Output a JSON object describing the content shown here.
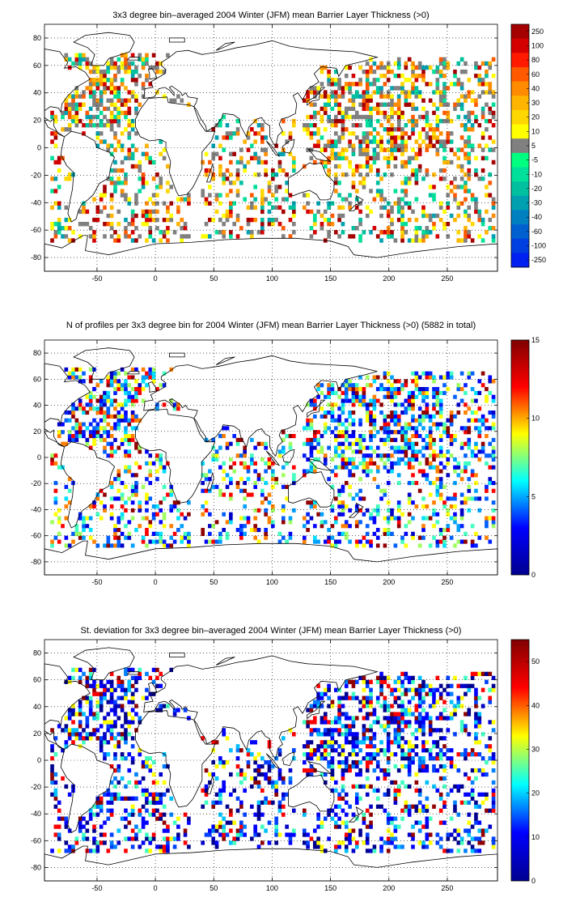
{
  "chart_data": [
    {
      "type": "heatmap",
      "title": "3x3 degree bin–averaged 2004 Winter (JFM) mean Barrier Layer Thickness (>0)",
      "xlim": [
        -95,
        293
      ],
      "ylim": [
        -90,
        90
      ],
      "xticks": [
        -50,
        0,
        50,
        100,
        150,
        200,
        250
      ],
      "yticks": [
        -80,
        -60,
        -40,
        -20,
        0,
        20,
        40,
        60,
        80
      ],
      "grid": true,
      "colorbar": {
        "kind": "discrete",
        "labels": [
          "250",
          "100",
          "80",
          "60",
          "40",
          "30",
          "20",
          "10",
          "5",
          "-5",
          "-10",
          "-20",
          "-30",
          "-40",
          "-60",
          "-100",
          "-250"
        ],
        "colors": [
          "#a50000",
          "#d40000",
          "#ff1a00",
          "#ff5a00",
          "#ff8c00",
          "#ffb400",
          "#ffd700",
          "#ffff00",
          "#808080",
          "#00ff80",
          "#00e09a",
          "#00c0a0",
          "#00a0b0",
          "#0080c0",
          "#0060d0",
          "#0040e0",
          "#0020f0"
        ]
      },
      "cell_palette": [
        "#808080",
        "#808080",
        "#808080",
        "#ffff00",
        "#ffd700",
        "#ffb400",
        "#ff8c00",
        "#ff5a00",
        "#d40000",
        "#a50000",
        "#00e09a",
        "#00c0a0",
        "#00a0b0"
      ],
      "regions": [
        {
          "lon": [
            -90,
            30
          ],
          "lat": [
            -70,
            70
          ],
          "density": 0.32
        },
        {
          "lon": [
            -75,
            -15
          ],
          "lat": [
            15,
            70
          ],
          "density": 0.55
        },
        {
          "lon": [
            40,
            120
          ],
          "lat": [
            -65,
            28
          ],
          "density": 0.3
        },
        {
          "lon": [
            125,
            290
          ],
          "lat": [
            -70,
            65
          ],
          "density": 0.3
        },
        {
          "lon": [
            130,
            250
          ],
          "lat": [
            -10,
            62
          ],
          "density": 0.5
        }
      ]
    },
    {
      "type": "heatmap",
      "title": "N of profiles per 3x3 degree bin for 2004 Winter (JFM) mean Barrier Layer Thickness (>0) (5882 in total)",
      "xlim": [
        -95,
        293
      ],
      "ylim": [
        -90,
        90
      ],
      "xticks": [
        -50,
        0,
        50,
        100,
        150,
        200,
        250
      ],
      "yticks": [
        -80,
        -60,
        -40,
        -20,
        0,
        20,
        40,
        60,
        80
      ],
      "grid": true,
      "colorbar": {
        "kind": "continuous",
        "min": 0,
        "max": 15,
        "ticks": [
          0,
          5,
          10,
          15
        ],
        "colors": [
          "#00008f",
          "#0000ff",
          "#00ffff",
          "#ffff00",
          "#ff0000",
          "#800000"
        ]
      },
      "cell_palette": [
        "#0000c8",
        "#0000ff",
        "#0020ff",
        "#0060ff",
        "#00a0ff",
        "#00e0ff",
        "#40ffc0",
        "#a0ff60",
        "#ffff00",
        "#ff8000",
        "#ff0000",
        "#900000"
      ],
      "regions": [
        {
          "lon": [
            -90,
            30
          ],
          "lat": [
            -70,
            70
          ],
          "density": 0.32
        },
        {
          "lon": [
            -75,
            -15
          ],
          "lat": [
            15,
            70
          ],
          "density": 0.55
        },
        {
          "lon": [
            40,
            120
          ],
          "lat": [
            -65,
            28
          ],
          "density": 0.3
        },
        {
          "lon": [
            125,
            290
          ],
          "lat": [
            -70,
            65
          ],
          "density": 0.3
        },
        {
          "lon": [
            130,
            250
          ],
          "lat": [
            -10,
            62
          ],
          "density": 0.5
        }
      ]
    },
    {
      "type": "heatmap",
      "title": "St. deviation for 3x3 degree bin–averaged 2004 Winter (JFM) mean Barrier Layer Thickness (>0)",
      "xlim": [
        -95,
        293
      ],
      "ylim": [
        -90,
        90
      ],
      "xticks": [
        -50,
        0,
        50,
        100,
        150,
        200,
        250
      ],
      "yticks": [
        -80,
        -60,
        -40,
        -20,
        0,
        20,
        40,
        60,
        80
      ],
      "grid": true,
      "colorbar": {
        "kind": "continuous",
        "min": 0,
        "max": 55,
        "ticks": [
          0,
          10,
          20,
          30,
          40,
          50
        ],
        "colors": [
          "#00008f",
          "#0000ff",
          "#00ffff",
          "#ffff00",
          "#ff0000",
          "#800000"
        ]
      },
      "cell_palette": [
        "#00008f",
        "#00008f",
        "#0000c8",
        "#0000ff",
        "#0000ff",
        "#0040ff",
        "#0080ff",
        "#00c0ff",
        "#40ffc0",
        "#ffff00",
        "#ff0000",
        "#900000"
      ],
      "regions": [
        {
          "lon": [
            -90,
            30
          ],
          "lat": [
            -70,
            70
          ],
          "density": 0.32
        },
        {
          "lon": [
            -75,
            -15
          ],
          "lat": [
            15,
            70
          ],
          "density": 0.55
        },
        {
          "lon": [
            40,
            120
          ],
          "lat": [
            -65,
            28
          ],
          "density": 0.3
        },
        {
          "lon": [
            125,
            290
          ],
          "lat": [
            -70,
            65
          ],
          "density": 0.3
        },
        {
          "lon": [
            130,
            250
          ],
          "lat": [
            -10,
            62
          ],
          "density": 0.5
        }
      ]
    }
  ]
}
